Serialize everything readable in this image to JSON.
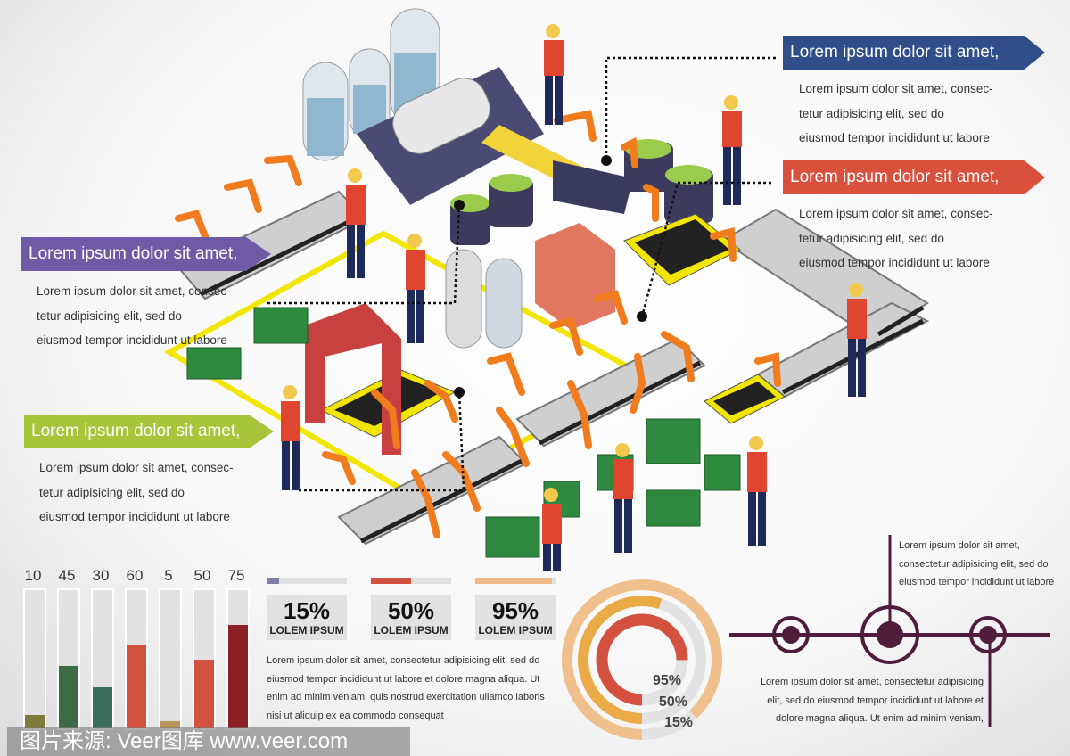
{
  "callouts": [
    {
      "title": "Lorem ipsum dolor sit amet,",
      "color": "#2f4e8a",
      "lines": [
        "Lorem ipsum dolor sit amet, consec-",
        "tetur adipisicing elit, sed do",
        "eiusmod tempor incididunt ut labore"
      ]
    },
    {
      "title": "Lorem ipsum dolor sit amet,",
      "color": "#d9503c",
      "lines": [
        "Lorem ipsum dolor sit amet, consec-",
        "tetur adipisicing elit, sed do",
        "eiusmod tempor incididunt ut labore"
      ]
    },
    {
      "title": "Lorem ipsum dolor sit amet,",
      "color": "#6f5aa6",
      "lines": [
        "Lorem ipsum dolor sit amet, consec-",
        "tetur adipisicing elit, sed do",
        "eiusmod tempor incididunt ut labore"
      ]
    },
    {
      "title": "Lorem ipsum dolor sit amet,",
      "color": "#a8c43a",
      "lines": [
        "Lorem ipsum dolor sit amet, consec-",
        "tetur adipisicing elit, sed do",
        "eiusmod tempor incididunt ut labore"
      ]
    }
  ],
  "chart_data": [
    {
      "type": "bar",
      "categories": [
        "10",
        "45",
        "30",
        "60",
        "5",
        "50",
        "75"
      ],
      "values": [
        10,
        45,
        30,
        60,
        5,
        50,
        75
      ],
      "colors": [
        "#7d7a3c",
        "#3b6a45",
        "#3a6d5b",
        "#d4503f",
        "#b8965a",
        "#d4503f",
        "#8e1f24"
      ],
      "ylim": [
        0,
        100
      ]
    },
    {
      "type": "bar",
      "categories": [
        "15%",
        "50%",
        "95%"
      ],
      "values": [
        15,
        50,
        95
      ],
      "colors": [
        "#7f7fa3",
        "#d4503f",
        "#eebb88"
      ],
      "ylim": [
        0,
        100
      ]
    },
    {
      "type": "pie",
      "labels": [
        "95%",
        "50%",
        "15%"
      ],
      "values": [
        95,
        50,
        15
      ],
      "colors": [
        "#d4503f",
        "#eaaa45",
        "#efbf8c"
      ]
    }
  ],
  "stats": {
    "items": [
      {
        "value": "15%",
        "label": "LOLEM IPSUM"
      },
      {
        "value": "50%",
        "label": "LOLEM IPSUM"
      },
      {
        "value": "95%",
        "label": "LOLEM IPSUM"
      }
    ],
    "paragraph": [
      "Lorem ipsum dolor sit amet, consectetur adipisicing elit, sed do",
      "eiusmod tempor incididunt ut labore et dolore magna aliqua. Ut",
      "enim ad minim veniam, quis nostrud exercitation ullamco laboris",
      "nisi ut aliquip ex ea commodo consequat"
    ]
  },
  "timeline": {
    "color": "#4f1c3c",
    "top_text": [
      "Lorem ipsum dolor sit amet,",
      "consectetur adipisicing elit, sed do",
      "eiusmod tempor incididunt ut labore"
    ],
    "bottom_text": [
      "Lorem ipsum dolor sit amet, consectetur adipisicing",
      "elit, sed do eiusmod tempor incididunt ut labore et",
      "dolore magna aliqua. Ut enim ad minim veniam,"
    ]
  },
  "watermark": "图片来源: Veer图库 www.veer.com"
}
